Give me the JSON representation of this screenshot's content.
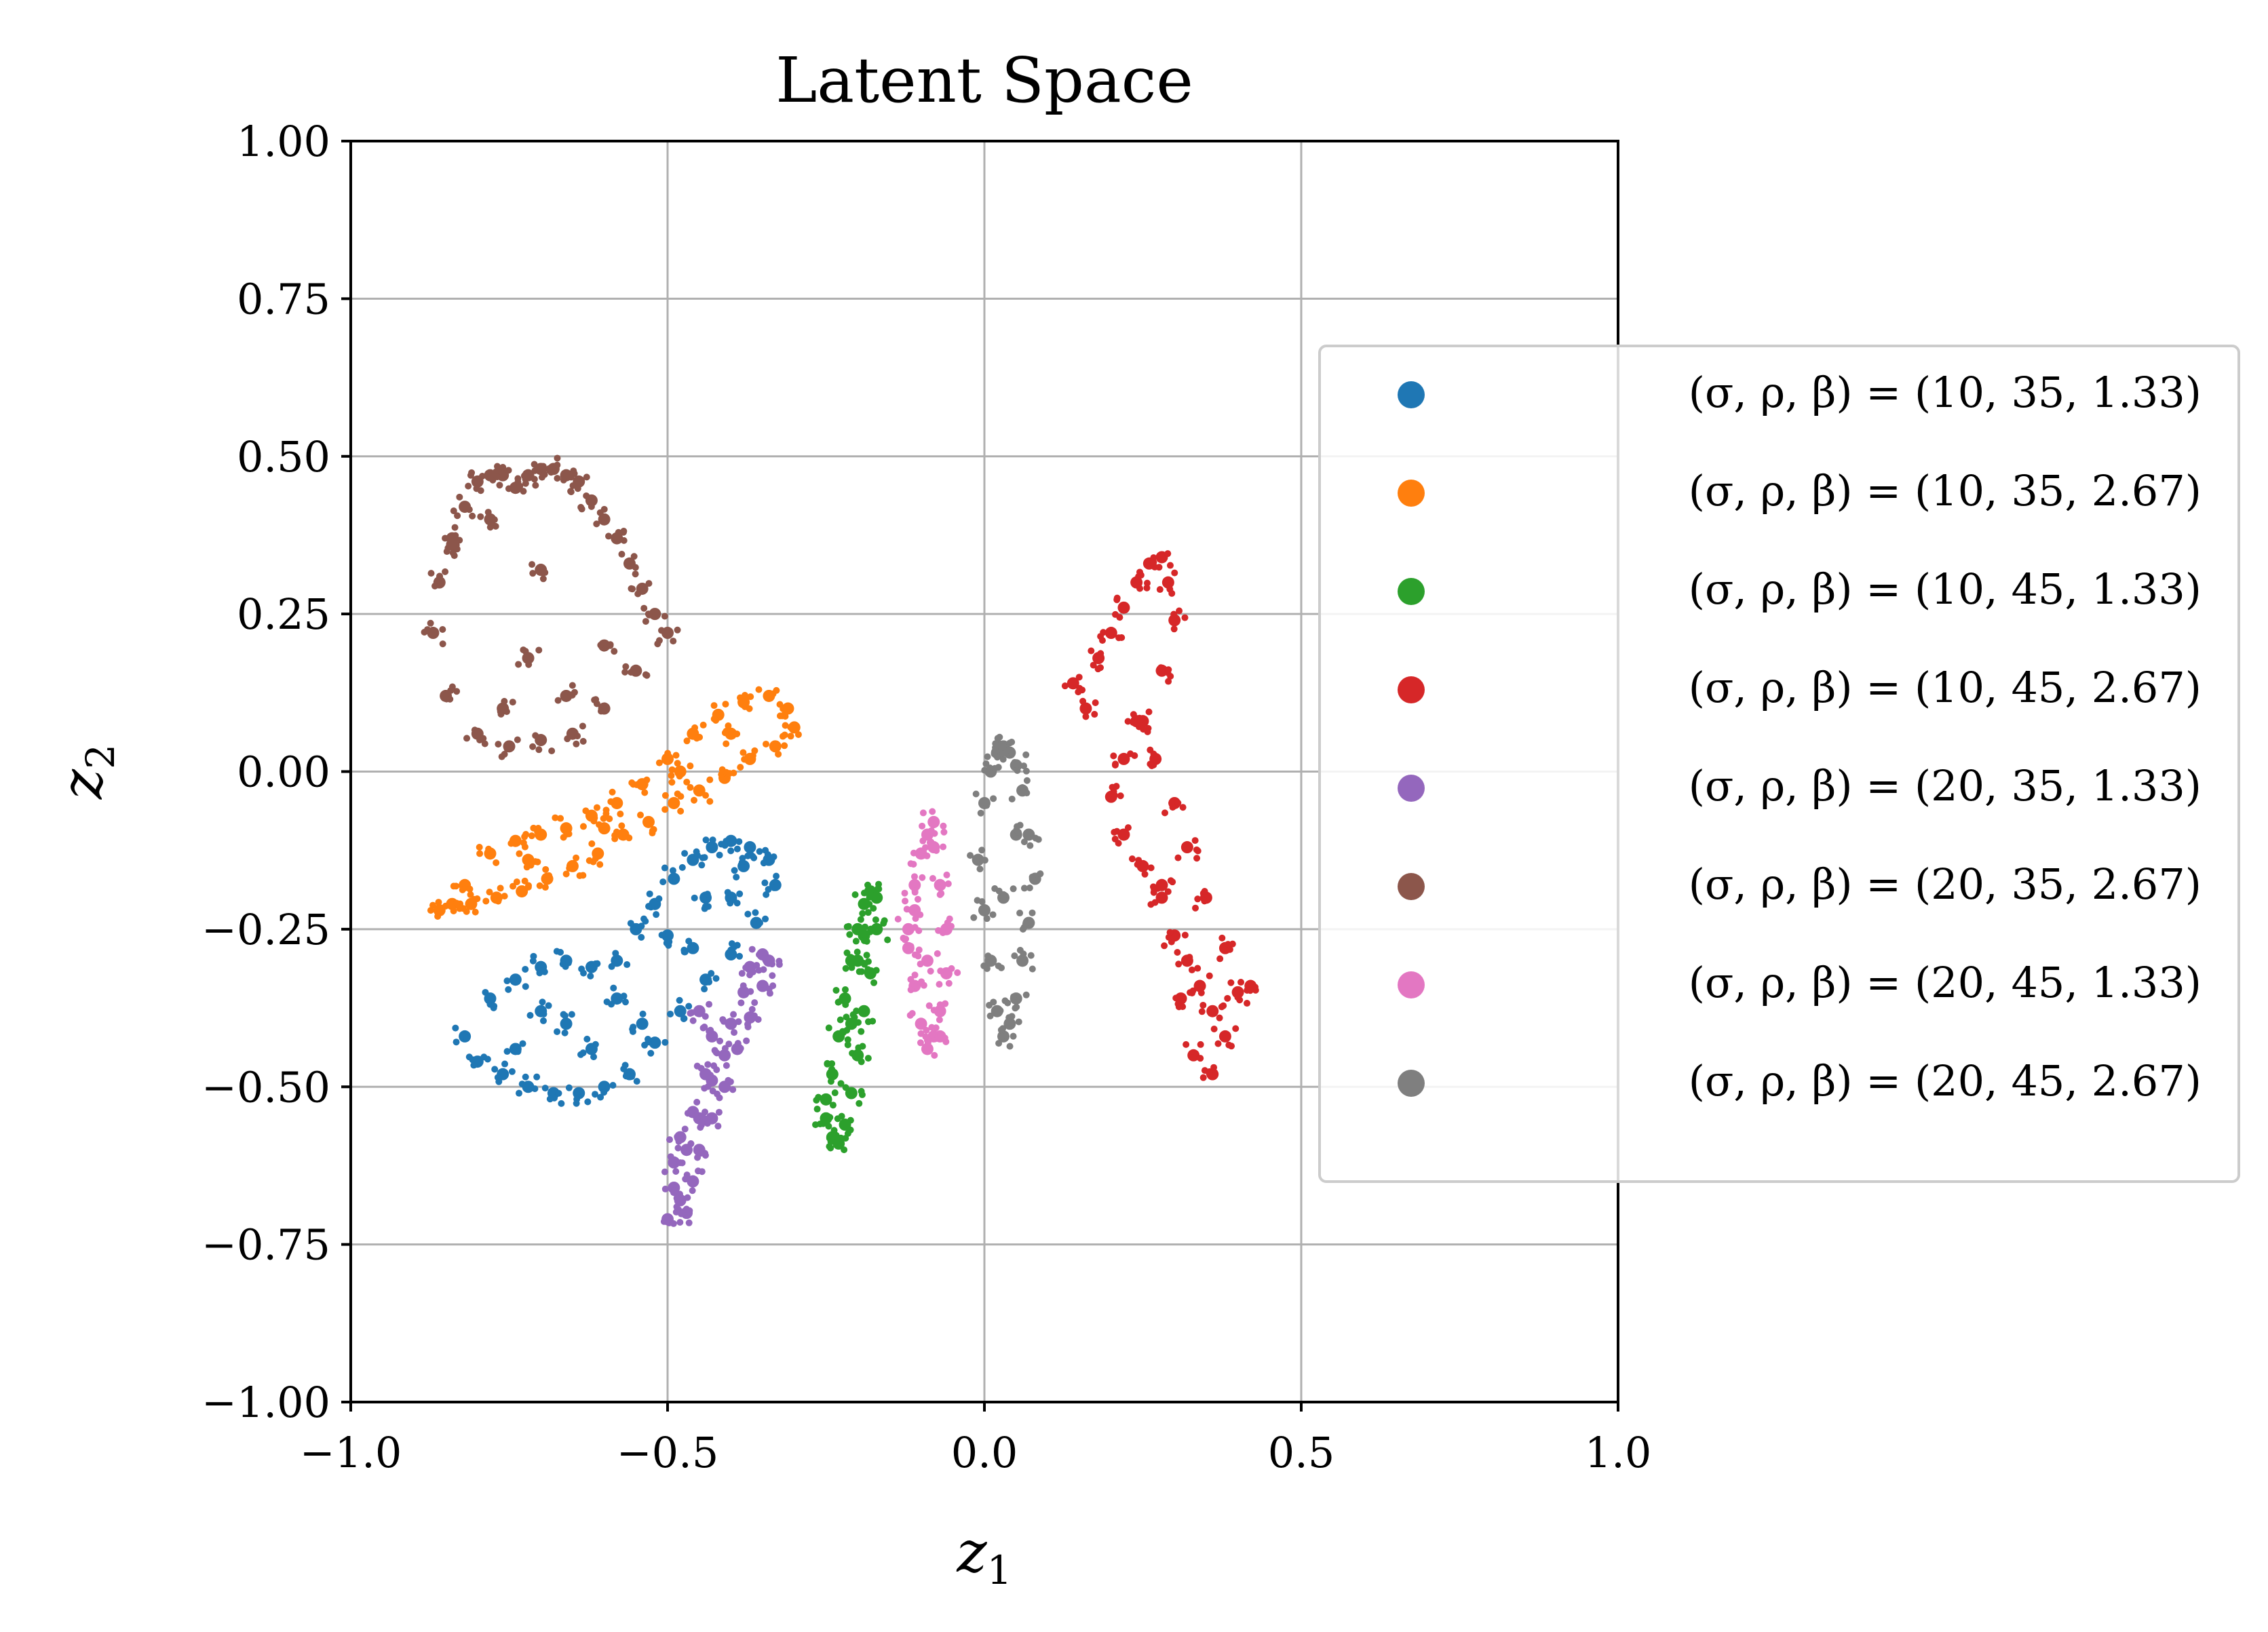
{
  "chart_data": {
    "type": "scatter",
    "title": "Latent Space",
    "xlabel": "z1",
    "ylabel": "z2",
    "xlim": [
      -1.0,
      1.0
    ],
    "ylim": [
      -1.0,
      1.0
    ],
    "xticks": [
      "−1.0",
      "−0.5",
      "0.0",
      "0.5",
      "1.0"
    ],
    "yticks": [
      "−1.00",
      "−0.75",
      "−0.50",
      "−0.25",
      "0.00",
      "0.25",
      "0.50",
      "0.75",
      "1.00"
    ],
    "grid": true,
    "legend_position": "right, outside plot",
    "series": [
      {
        "name": "(σ, ρ, β) = (10, 35, 1.33)",
        "color": "#1f77b4",
        "x": [
          -0.82,
          -0.78,
          -0.74,
          -0.7,
          -0.66,
          -0.62,
          -0.58,
          -0.55,
          -0.52,
          -0.49,
          -0.46,
          -0.43,
          -0.4,
          -0.37,
          -0.34,
          -0.33,
          -0.36,
          -0.4,
          -0.44,
          -0.48,
          -0.52,
          -0.56,
          -0.6,
          -0.64,
          -0.68,
          -0.72,
          -0.76,
          -0.8,
          -0.74,
          -0.66,
          -0.58,
          -0.5,
          -0.44,
          -0.38,
          -0.7,
          -0.62,
          -0.54,
          -0.46,
          -0.4
        ],
        "y": [
          -0.42,
          -0.36,
          -0.33,
          -0.31,
          -0.3,
          -0.31,
          -0.3,
          -0.25,
          -0.21,
          -0.17,
          -0.14,
          -0.12,
          -0.11,
          -0.12,
          -0.14,
          -0.18,
          -0.24,
          -0.29,
          -0.33,
          -0.38,
          -0.43,
          -0.48,
          -0.5,
          -0.51,
          -0.51,
          -0.5,
          -0.48,
          -0.46,
          -0.44,
          -0.4,
          -0.36,
          -0.26,
          -0.2,
          -0.15,
          -0.38,
          -0.44,
          -0.4,
          -0.28,
          -0.2
        ]
      },
      {
        "name": "(σ, ρ, β) = (10, 35, 2.67)",
        "color": "#ff7f0e",
        "x": [
          -0.86,
          -0.82,
          -0.78,
          -0.74,
          -0.7,
          -0.66,
          -0.62,
          -0.58,
          -0.54,
          -0.5,
          -0.46,
          -0.42,
          -0.38,
          -0.34,
          -0.31,
          -0.3,
          -0.33,
          -0.37,
          -0.41,
          -0.45,
          -0.49,
          -0.53,
          -0.57,
          -0.61,
          -0.65,
          -0.69,
          -0.73,
          -0.77,
          -0.81,
          -0.84,
          -0.72,
          -0.6,
          -0.48,
          -0.4
        ],
        "y": [
          -0.22,
          -0.18,
          -0.13,
          -0.11,
          -0.1,
          -0.09,
          -0.07,
          -0.05,
          -0.02,
          0.02,
          0.06,
          0.09,
          0.11,
          0.12,
          0.1,
          0.07,
          0.04,
          0.02,
          -0.01,
          -0.03,
          -0.05,
          -0.08,
          -0.1,
          -0.13,
          -0.15,
          -0.17,
          -0.19,
          -0.2,
          -0.21,
          -0.21,
          -0.14,
          -0.09,
          0.0,
          0.06
        ]
      },
      {
        "name": "(σ, ρ, β) = (10, 45, 1.33)",
        "color": "#2ca02c",
        "x": [
          -0.25,
          -0.24,
          -0.23,
          -0.22,
          -0.21,
          -0.2,
          -0.19,
          -0.18,
          -0.17,
          -0.17,
          -0.18,
          -0.19,
          -0.2,
          -0.21,
          -0.22,
          -0.23,
          -0.24,
          -0.25,
          -0.21,
          -0.2,
          -0.19
        ],
        "y": [
          -0.55,
          -0.48,
          -0.42,
          -0.36,
          -0.3,
          -0.25,
          -0.21,
          -0.19,
          -0.2,
          -0.25,
          -0.32,
          -0.38,
          -0.45,
          -0.51,
          -0.56,
          -0.59,
          -0.58,
          -0.52,
          -0.4,
          -0.3,
          -0.26
        ]
      },
      {
        "name": "(σ, ρ, β) = (10, 45, 2.67)",
        "color": "#d62728",
        "x": [
          0.14,
          0.16,
          0.18,
          0.2,
          0.22,
          0.24,
          0.26,
          0.28,
          0.29,
          0.3,
          0.28,
          0.25,
          0.22,
          0.2,
          0.22,
          0.25,
          0.28,
          0.3,
          0.32,
          0.34,
          0.36,
          0.38,
          0.4,
          0.42,
          0.38,
          0.35,
          0.32,
          0.3,
          0.27,
          0.24,
          0.33,
          0.36,
          0.28,
          0.31
        ],
        "y": [
          0.14,
          0.1,
          0.18,
          0.22,
          0.26,
          0.3,
          0.33,
          0.34,
          0.3,
          0.24,
          0.16,
          0.08,
          0.02,
          -0.04,
          -0.1,
          -0.15,
          -0.2,
          -0.26,
          -0.3,
          -0.34,
          -0.38,
          -0.42,
          -0.35,
          -0.34,
          -0.28,
          -0.2,
          -0.12,
          -0.05,
          0.02,
          0.08,
          -0.45,
          -0.48,
          -0.18,
          -0.36
        ]
      },
      {
        "name": "(σ, ρ, β) = (20, 35, 1.33)",
        "color": "#9467bd",
        "x": [
          -0.5,
          -0.49,
          -0.47,
          -0.45,
          -0.43,
          -0.41,
          -0.4,
          -0.38,
          -0.37,
          -0.35,
          -0.34,
          -0.35,
          -0.37,
          -0.39,
          -0.41,
          -0.43,
          -0.45,
          -0.46,
          -0.47,
          -0.48,
          -0.49,
          -0.48,
          -0.46,
          -0.44,
          -0.43,
          -0.45
        ],
        "y": [
          -0.71,
          -0.66,
          -0.6,
          -0.55,
          -0.49,
          -0.45,
          -0.4,
          -0.35,
          -0.31,
          -0.29,
          -0.3,
          -0.34,
          -0.39,
          -0.44,
          -0.5,
          -0.55,
          -0.6,
          -0.65,
          -0.7,
          -0.68,
          -0.62,
          -0.58,
          -0.54,
          -0.48,
          -0.42,
          -0.38
        ]
      },
      {
        "name": "(σ, ρ, β) = (20, 35, 2.67)",
        "color": "#8c564b",
        "x": [
          -0.87,
          -0.86,
          -0.84,
          -0.82,
          -0.8,
          -0.78,
          -0.76,
          -0.74,
          -0.72,
          -0.7,
          -0.68,
          -0.66,
          -0.64,
          -0.62,
          -0.6,
          -0.58,
          -0.56,
          -0.54,
          -0.52,
          -0.5,
          -0.55,
          -0.6,
          -0.65,
          -0.7,
          -0.75,
          -0.8,
          -0.85,
          -0.84,
          -0.78,
          -0.72,
          -0.66,
          -0.6,
          -0.76,
          -0.7
        ],
        "y": [
          0.22,
          0.3,
          0.37,
          0.42,
          0.46,
          0.47,
          0.47,
          0.45,
          0.47,
          0.48,
          0.48,
          0.47,
          0.46,
          0.43,
          0.4,
          0.37,
          0.33,
          0.29,
          0.25,
          0.22,
          0.16,
          0.1,
          0.06,
          0.05,
          0.04,
          0.06,
          0.12,
          0.36,
          0.4,
          0.18,
          0.12,
          0.2,
          0.1,
          0.32
        ]
      },
      {
        "name": "(σ, ρ, β) = (20, 45, 1.33)",
        "color": "#e377c2",
        "x": [
          -0.12,
          -0.11,
          -0.1,
          -0.09,
          -0.08,
          -0.08,
          -0.07,
          -0.06,
          -0.06,
          -0.07,
          -0.08,
          -0.09,
          -0.1,
          -0.11,
          -0.12,
          -0.11,
          -0.09,
          -0.07
        ],
        "y": [
          -0.25,
          -0.18,
          -0.13,
          -0.1,
          -0.08,
          -0.12,
          -0.18,
          -0.25,
          -0.32,
          -0.38,
          -0.42,
          -0.44,
          -0.4,
          -0.34,
          -0.28,
          -0.22,
          -0.3,
          -0.42
        ]
      },
      {
        "name": "(σ, ρ, β) = (20, 45, 2.67)",
        "color": "#7f7f7f",
        "x": [
          0.0,
          0.01,
          0.02,
          0.03,
          0.04,
          0.05,
          0.06,
          0.07,
          0.08,
          0.07,
          0.06,
          0.05,
          0.04,
          0.03,
          0.02,
          0.01,
          0.0,
          -0.01,
          0.03,
          0.05
        ],
        "y": [
          -0.05,
          0.0,
          0.03,
          0.04,
          0.03,
          0.01,
          -0.03,
          -0.1,
          -0.17,
          -0.24,
          -0.3,
          -0.36,
          -0.4,
          -0.42,
          -0.38,
          -0.3,
          -0.22,
          -0.14,
          -0.2,
          -0.1
        ]
      }
    ]
  }
}
